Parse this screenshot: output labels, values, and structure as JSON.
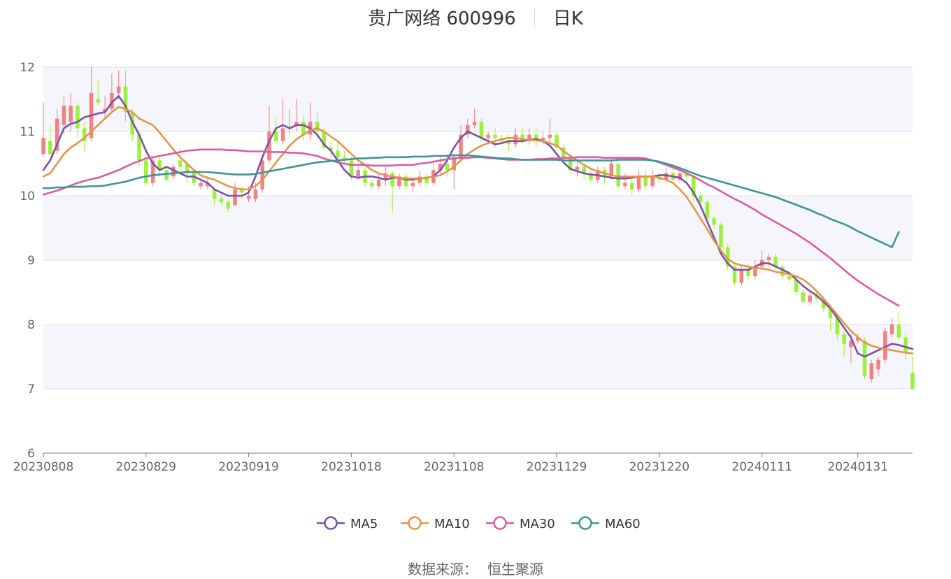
{
  "header": {
    "title": "贵广网络 600996",
    "subtitle": "日K"
  },
  "footer": {
    "source_label": "数据来源：",
    "source_value": "恒生聚源"
  },
  "colors": {
    "up": "#f38181",
    "down": "#9cf03a",
    "ma5": "#7b52a8",
    "ma10": "#e3954c",
    "ma30": "#d85ca5",
    "ma60": "#3f9494",
    "grid_band": "#f4f6fb",
    "grid_line": "#dde2ee"
  },
  "chart_data": {
    "type": "candlestick",
    "title": "贵广网络 600996",
    "xlabel": "",
    "ylabel": "",
    "ylim": [
      6,
      12
    ],
    "y_ticks": [
      6,
      7,
      8,
      9,
      10,
      11,
      12
    ],
    "x_tick_labels": [
      "20230808",
      "20230829",
      "20230919",
      "20231018",
      "20231108",
      "20231129",
      "20231220",
      "20240111",
      "20240131"
    ],
    "x_tick_index": [
      0,
      15,
      30,
      45,
      60,
      75,
      90,
      105,
      119
    ],
    "legend": {
      "placement": "bottom-center",
      "items": [
        {
          "name": "MA5",
          "color": "#7b52a8"
        },
        {
          "name": "MA10",
          "color": "#e3954c"
        },
        {
          "name": "MA30",
          "color": "#d85ca5"
        },
        {
          "name": "MA60",
          "color": "#3f9494"
        }
      ]
    },
    "candles": [
      [
        10.65,
        10.9,
        11.45,
        10.6
      ],
      [
        10.85,
        10.65,
        11.1,
        10.6
      ],
      [
        10.7,
        11.2,
        11.35,
        10.65
      ],
      [
        11.1,
        11.4,
        11.55,
        10.95
      ],
      [
        11.15,
        11.4,
        11.6,
        11.0
      ],
      [
        11.4,
        11.05,
        11.45,
        10.9
      ],
      [
        11.05,
        10.85,
        11.15,
        10.7
      ],
      [
        10.9,
        11.6,
        12.0,
        10.85
      ],
      [
        11.5,
        11.45,
        11.8,
        11.4
      ],
      [
        11.3,
        11.35,
        11.55,
        11.2
      ],
      [
        11.35,
        11.6,
        11.9,
        11.3
      ],
      [
        11.6,
        11.7,
        11.95,
        11.5
      ],
      [
        11.7,
        11.3,
        11.95,
        11.15
      ],
      [
        11.3,
        10.95,
        11.35,
        10.85
      ],
      [
        10.95,
        10.55,
        11.0,
        10.45
      ],
      [
        10.55,
        10.2,
        10.65,
        10.15
      ],
      [
        10.2,
        10.55,
        10.6,
        10.15
      ],
      [
        10.55,
        10.4,
        10.6,
        10.3
      ],
      [
        10.4,
        10.25,
        10.45,
        10.2
      ],
      [
        10.3,
        10.45,
        10.5,
        10.25
      ],
      [
        10.55,
        10.45,
        10.75,
        10.3
      ],
      [
        10.5,
        10.35,
        10.55,
        10.2
      ],
      [
        10.35,
        10.2,
        10.4,
        10.15
      ],
      [
        10.15,
        10.2,
        10.25,
        10.1
      ],
      [
        10.15,
        10.2,
        10.3,
        10.1
      ],
      [
        10.1,
        9.95,
        10.15,
        9.85
      ],
      [
        9.95,
        9.9,
        10.05,
        9.85
      ],
      [
        9.9,
        9.8,
        9.95,
        9.75
      ],
      [
        9.85,
        10.1,
        10.2,
        9.85
      ],
      [
        10.1,
        10.05,
        10.15,
        9.95
      ],
      [
        9.95,
        10.0,
        10.15,
        9.9
      ],
      [
        9.95,
        10.1,
        10.2,
        9.9
      ],
      [
        10.1,
        10.55,
        10.65,
        10.05
      ],
      [
        10.55,
        11.0,
        11.4,
        10.5
      ],
      [
        11.0,
        10.85,
        11.2,
        10.8
      ],
      [
        10.85,
        11.05,
        11.5,
        10.8
      ],
      [
        11.05,
        11.05,
        11.35,
        10.95
      ],
      [
        11.1,
        11.15,
        11.5,
        11.0
      ],
      [
        11.15,
        10.95,
        11.25,
        10.85
      ],
      [
        10.95,
        11.15,
        11.45,
        10.85
      ],
      [
        11.15,
        11.0,
        11.3,
        10.9
      ],
      [
        11.0,
        10.75,
        11.05,
        10.7
      ],
      [
        10.75,
        10.7,
        10.85,
        10.6
      ],
      [
        10.7,
        10.6,
        10.85,
        10.55
      ],
      [
        10.6,
        10.55,
        10.7,
        10.5
      ],
      [
        10.55,
        10.3,
        10.6,
        10.25
      ],
      [
        10.3,
        10.4,
        10.45,
        10.25
      ],
      [
        10.4,
        10.2,
        10.45,
        10.15
      ],
      [
        10.2,
        10.15,
        10.25,
        10.1
      ],
      [
        10.15,
        10.25,
        10.35,
        10.1
      ],
      [
        10.25,
        10.35,
        10.45,
        10.15
      ],
      [
        10.35,
        10.15,
        10.4,
        9.75
      ],
      [
        10.15,
        10.3,
        10.35,
        10.1
      ],
      [
        10.3,
        10.15,
        10.35,
        10.1
      ],
      [
        10.15,
        10.2,
        10.25,
        10.05
      ],
      [
        10.2,
        10.3,
        10.4,
        10.15
      ],
      [
        10.3,
        10.2,
        10.35,
        10.15
      ],
      [
        10.2,
        10.4,
        10.5,
        10.15
      ],
      [
        10.4,
        10.5,
        10.6,
        10.3
      ],
      [
        10.5,
        10.4,
        10.65,
        10.3
      ],
      [
        10.4,
        10.6,
        10.65,
        10.1
      ],
      [
        10.6,
        10.95,
        11.1,
        10.55
      ],
      [
        10.95,
        11.1,
        11.2,
        10.9
      ],
      [
        11.1,
        11.15,
        11.35,
        11.05
      ],
      [
        11.15,
        10.9,
        11.2,
        10.85
      ],
      [
        10.9,
        10.95,
        11.0,
        10.8
      ],
      [
        10.95,
        10.9,
        11.05,
        10.75
      ],
      [
        10.9,
        10.85,
        10.95,
        10.8
      ],
      [
        10.85,
        10.8,
        10.95,
        10.7
      ],
      [
        10.8,
        10.95,
        11.05,
        10.75
      ],
      [
        10.95,
        10.85,
        11.05,
        10.8
      ],
      [
        10.85,
        10.95,
        11.05,
        10.8
      ],
      [
        10.95,
        10.85,
        11.05,
        10.75
      ],
      [
        10.85,
        10.9,
        11.0,
        10.8
      ],
      [
        10.9,
        10.95,
        11.2,
        10.8
      ],
      [
        10.95,
        10.75,
        11.0,
        10.7
      ],
      [
        10.75,
        10.6,
        10.8,
        10.5
      ],
      [
        10.6,
        10.4,
        10.65,
        10.35
      ],
      [
        10.4,
        10.45,
        10.55,
        10.3
      ],
      [
        10.45,
        10.35,
        10.5,
        10.25
      ],
      [
        10.35,
        10.25,
        10.4,
        10.2
      ],
      [
        10.25,
        10.4,
        10.45,
        10.2
      ],
      [
        10.4,
        10.3,
        10.45,
        10.2
      ],
      [
        10.3,
        10.5,
        10.55,
        10.25
      ],
      [
        10.5,
        10.15,
        10.5,
        10.1
      ],
      [
        10.15,
        10.2,
        10.35,
        10.1
      ],
      [
        10.2,
        10.1,
        10.3,
        10.0
      ],
      [
        10.1,
        10.3,
        10.4,
        10.05
      ],
      [
        10.3,
        10.15,
        10.4,
        10.1
      ],
      [
        10.15,
        10.3,
        10.4,
        10.1
      ],
      [
        10.3,
        10.25,
        10.35,
        10.2
      ],
      [
        10.25,
        10.35,
        10.45,
        10.2
      ],
      [
        10.35,
        10.25,
        10.45,
        10.2
      ],
      [
        10.25,
        10.35,
        10.45,
        10.2
      ],
      [
        10.35,
        10.3,
        10.45,
        10.2
      ],
      [
        10.3,
        10.0,
        10.35,
        9.9
      ],
      [
        10.0,
        9.9,
        10.05,
        9.8
      ],
      [
        9.9,
        9.65,
        9.95,
        9.6
      ],
      [
        9.65,
        9.55,
        9.7,
        9.5
      ],
      [
        9.55,
        9.2,
        9.6,
        9.15
      ],
      [
        9.2,
        8.9,
        9.25,
        8.85
      ],
      [
        8.9,
        8.65,
        8.95,
        8.6
      ],
      [
        8.65,
        8.85,
        8.9,
        8.6
      ],
      [
        8.85,
        8.75,
        8.95,
        8.7
      ],
      [
        8.75,
        8.9,
        9.0,
        8.7
      ],
      [
        8.9,
        9.0,
        9.15,
        8.85
      ],
      [
        9.0,
        9.05,
        9.1,
        8.9
      ],
      [
        9.05,
        8.9,
        9.1,
        8.85
      ],
      [
        8.9,
        8.75,
        8.95,
        8.7
      ],
      [
        8.75,
        8.7,
        8.8,
        8.65
      ],
      [
        8.7,
        8.5,
        8.75,
        8.45
      ],
      [
        8.5,
        8.35,
        8.55,
        8.3
      ],
      [
        8.35,
        8.45,
        8.5,
        8.3
      ],
      [
        8.45,
        8.4,
        8.5,
        8.35
      ],
      [
        8.4,
        8.25,
        8.45,
        8.2
      ],
      [
        8.25,
        8.1,
        8.3,
        7.9
      ],
      [
        8.1,
        7.85,
        8.15,
        7.75
      ],
      [
        7.85,
        7.7,
        7.9,
        7.5
      ],
      [
        7.65,
        7.75,
        7.85,
        7.4
      ],
      [
        7.75,
        7.8,
        7.85,
        7.7
      ],
      [
        7.75,
        7.2,
        7.8,
        7.15
      ],
      [
        7.15,
        7.4,
        7.45,
        7.1
      ],
      [
        7.3,
        7.45,
        7.5,
        7.2
      ],
      [
        7.45,
        7.9,
        7.95,
        7.4
      ],
      [
        7.85,
        8.0,
        8.1,
        7.8
      ],
      [
        8.0,
        7.8,
        8.2,
        7.75
      ],
      [
        7.8,
        7.55,
        7.85,
        7.45
      ],
      [
        7.25,
        7.0,
        7.5,
        6.98
      ]
    ],
    "series": [
      {
        "name": "MA5",
        "values": [
          10.4,
          10.55,
          10.8,
          11.05,
          11.12,
          11.15,
          11.22,
          11.25,
          11.28,
          11.3,
          11.45,
          11.55,
          11.4,
          11.15,
          10.95,
          10.7,
          10.5,
          10.4,
          10.45,
          10.4,
          10.35,
          10.3,
          10.3,
          10.25,
          10.2,
          10.1,
          10.05,
          10.0,
          10.0,
          10.0,
          10.05,
          10.3,
          10.6,
          10.85,
          11.05,
          11.1,
          11.05,
          11.1,
          11.1,
          11.05,
          10.95,
          10.8,
          10.7,
          10.55,
          10.4,
          10.3,
          10.28,
          10.3,
          10.3,
          10.28,
          10.25,
          10.28,
          10.28,
          10.25,
          10.25,
          10.27,
          10.28,
          10.3,
          10.4,
          10.55,
          10.75,
          10.9,
          11.0,
          10.95,
          10.9,
          10.85,
          10.8,
          10.82,
          10.85,
          10.85,
          10.85,
          10.87,
          10.88,
          10.85,
          10.78,
          10.65,
          10.52,
          10.42,
          10.38,
          10.35,
          10.33,
          10.32,
          10.3,
          10.28,
          10.27,
          10.27,
          10.28,
          10.3,
          10.3,
          10.3,
          10.32,
          10.32,
          10.3,
          10.28,
          10.2,
          10.05,
          9.85,
          9.6,
          9.35,
          9.1,
          8.95,
          8.85,
          8.85,
          8.85,
          8.9,
          8.95,
          8.95,
          8.9,
          8.85,
          8.8,
          8.7,
          8.6,
          8.52,
          8.45,
          8.35,
          8.25,
          8.1,
          7.95,
          7.8,
          7.55,
          7.5,
          7.55,
          7.6,
          7.65,
          7.7,
          7.68,
          7.65,
          7.62
        ]
      },
      {
        "name": "MA10",
        "values": [
          10.3,
          10.35,
          10.5,
          10.65,
          10.75,
          10.82,
          10.9,
          11.0,
          11.1,
          11.2,
          11.3,
          11.38,
          11.35,
          11.3,
          11.2,
          11.15,
          11.1,
          10.98,
          10.85,
          10.72,
          10.6,
          10.5,
          10.4,
          10.32,
          10.28,
          10.25,
          10.2,
          10.15,
          10.12,
          10.1,
          10.1,
          10.15,
          10.25,
          10.38,
          10.52,
          10.65,
          10.78,
          10.88,
          10.95,
          11.02,
          11.05,
          11.0,
          10.92,
          10.85,
          10.75,
          10.65,
          10.55,
          10.48,
          10.4,
          10.35,
          10.32,
          10.3,
          10.28,
          10.27,
          10.27,
          10.27,
          10.28,
          10.3,
          10.32,
          10.38,
          10.45,
          10.55,
          10.65,
          10.72,
          10.78,
          10.82,
          10.85,
          10.88,
          10.9,
          10.9,
          10.88,
          10.87,
          10.86,
          10.85,
          10.82,
          10.78,
          10.7,
          10.62,
          10.55,
          10.48,
          10.42,
          10.38,
          10.35,
          10.32,
          10.3,
          10.3,
          10.3,
          10.3,
          10.3,
          10.3,
          10.28,
          10.25,
          10.2,
          10.1,
          9.98,
          9.82,
          9.65,
          9.48,
          9.3,
          9.15,
          9.02,
          8.95,
          8.92,
          8.9,
          8.88,
          8.87,
          8.85,
          8.82,
          8.8,
          8.78,
          8.75,
          8.7,
          8.62,
          8.52,
          8.4,
          8.28,
          8.15,
          8.02,
          7.9,
          7.8,
          7.72,
          7.67,
          7.64,
          7.62,
          7.6,
          7.58,
          7.56,
          7.55
        ]
      },
      {
        "name": "MA30",
        "values": [
          10.02,
          10.05,
          10.08,
          10.12,
          10.16,
          10.2,
          10.23,
          10.26,
          10.28,
          10.32,
          10.36,
          10.4,
          10.45,
          10.5,
          10.54,
          10.58,
          10.6,
          10.62,
          10.64,
          10.66,
          10.68,
          10.7,
          10.71,
          10.72,
          10.72,
          10.72,
          10.72,
          10.71,
          10.71,
          10.7,
          10.69,
          10.69,
          10.69,
          10.68,
          10.68,
          10.68,
          10.67,
          10.67,
          10.66,
          10.64,
          10.62,
          10.58,
          10.55,
          10.52,
          10.5,
          10.48,
          10.48,
          10.48,
          10.47,
          10.47,
          10.47,
          10.47,
          10.48,
          10.48,
          10.48,
          10.5,
          10.51,
          10.53,
          10.55,
          10.57,
          10.58,
          10.59,
          10.59,
          10.6,
          10.6,
          10.59,
          10.58,
          10.57,
          10.56,
          10.56,
          10.56,
          10.56,
          10.57,
          10.57,
          10.58,
          10.58,
          10.59,
          10.59,
          10.6,
          10.6,
          10.6,
          10.6,
          10.59,
          10.59,
          10.59,
          10.59,
          10.59,
          10.59,
          10.58,
          10.55,
          10.52,
          10.48,
          10.44,
          10.4,
          10.35,
          10.3,
          10.24,
          10.18,
          10.13,
          10.07,
          10.01,
          9.95,
          9.9,
          9.84,
          9.78,
          9.71,
          9.65,
          9.59,
          9.53,
          9.47,
          9.41,
          9.34,
          9.27,
          9.19,
          9.11,
          9.03,
          8.94,
          8.85,
          8.76,
          8.68,
          8.61,
          8.54,
          8.47,
          8.41,
          8.35,
          8.29
        ]
      },
      {
        "name": "MA60",
        "values": [
          10.12,
          10.12,
          10.13,
          10.13,
          10.14,
          10.14,
          10.14,
          10.15,
          10.15,
          10.16,
          10.18,
          10.2,
          10.22,
          10.25,
          10.28,
          10.3,
          10.32,
          10.33,
          10.34,
          10.35,
          10.36,
          10.37,
          10.37,
          10.37,
          10.37,
          10.36,
          10.35,
          10.34,
          10.33,
          10.33,
          10.33,
          10.34,
          10.36,
          10.38,
          10.4,
          10.42,
          10.44,
          10.46,
          10.48,
          10.5,
          10.52,
          10.53,
          10.54,
          10.55,
          10.56,
          10.57,
          10.58,
          10.58,
          10.59,
          10.59,
          10.6,
          10.6,
          10.6,
          10.6,
          10.61,
          10.61,
          10.61,
          10.62,
          10.62,
          10.62,
          10.63,
          10.63,
          10.63,
          10.62,
          10.61,
          10.6,
          10.59,
          10.58,
          10.58,
          10.57,
          10.56,
          10.56,
          10.56,
          10.56,
          10.56,
          10.56,
          10.55,
          10.55,
          10.55,
          10.55,
          10.55,
          10.55,
          10.55,
          10.55,
          10.56,
          10.56,
          10.56,
          10.56,
          10.56,
          10.55,
          10.53,
          10.5,
          10.47,
          10.43,
          10.39,
          10.35,
          10.31,
          10.28,
          10.25,
          10.22,
          10.19,
          10.16,
          10.13,
          10.1,
          10.07,
          10.04,
          10.01,
          9.98,
          9.94,
          9.9,
          9.86,
          9.82,
          9.78,
          9.73,
          9.69,
          9.64,
          9.6,
          9.56,
          9.51,
          9.45,
          9.4,
          9.35,
          9.3,
          9.25,
          9.2,
          9.44
        ]
      }
    ]
  }
}
